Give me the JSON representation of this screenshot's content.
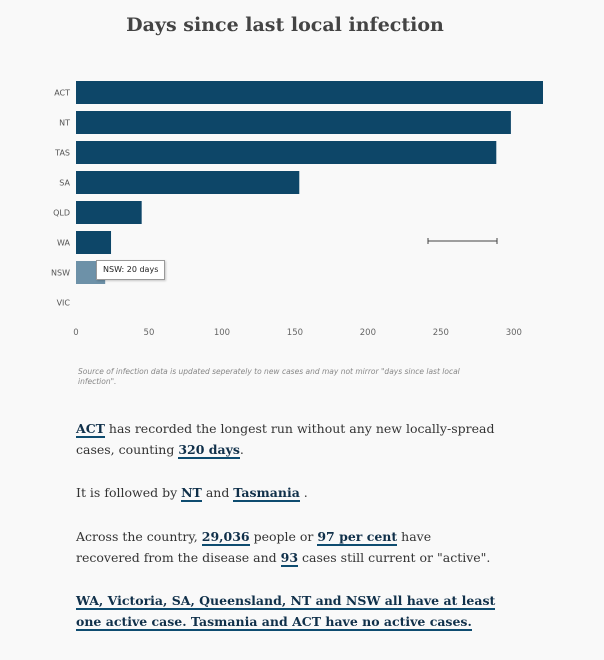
{
  "chart_data": {
    "type": "bar",
    "orientation": "horizontal",
    "title": "Days since last local infection",
    "categories": [
      "ACT",
      "NT",
      "TAS",
      "SA",
      "QLD",
      "WA",
      "NSW",
      "VIC"
    ],
    "values": [
      320,
      298,
      288,
      153,
      45,
      24,
      20,
      0
    ],
    "xlim": [
      0,
      320
    ],
    "xticks": [
      0,
      50,
      100,
      150,
      200,
      250,
      300
    ],
    "grid": false,
    "colors": {
      "bar": "#0d4668",
      "highlight": "#6d91a8"
    },
    "highlighted_category": "NSW",
    "tooltip": {
      "label": "NSW:",
      "value": "20 days"
    }
  },
  "source_note": "Source of infection data is updated seperately to new cases and may not mirror \"days since last local infection\".",
  "article": {
    "p1": {
      "link1": "ACT",
      "text1": " has recorded the longest run without any new locally-spread cases, counting ",
      "link2": "320 days",
      "text2": "."
    },
    "p2": {
      "text1": "It is followed by ",
      "link1": "NT",
      "text2": " and ",
      "link2": "Tasmania",
      "text3": " ."
    },
    "p3": {
      "text1": "Across the country, ",
      "link1": "29,036",
      "text2": " people or ",
      "link2": "97 per cent",
      "text3": " have recovered from the disease and ",
      "link3": "93",
      "text4": " cases still current or \"active\"."
    },
    "p4": {
      "link1": "WA, Victoria, SA, Queensland, NT and NSW all have at least one active case. Tasmania and ACT have no active cases."
    }
  }
}
